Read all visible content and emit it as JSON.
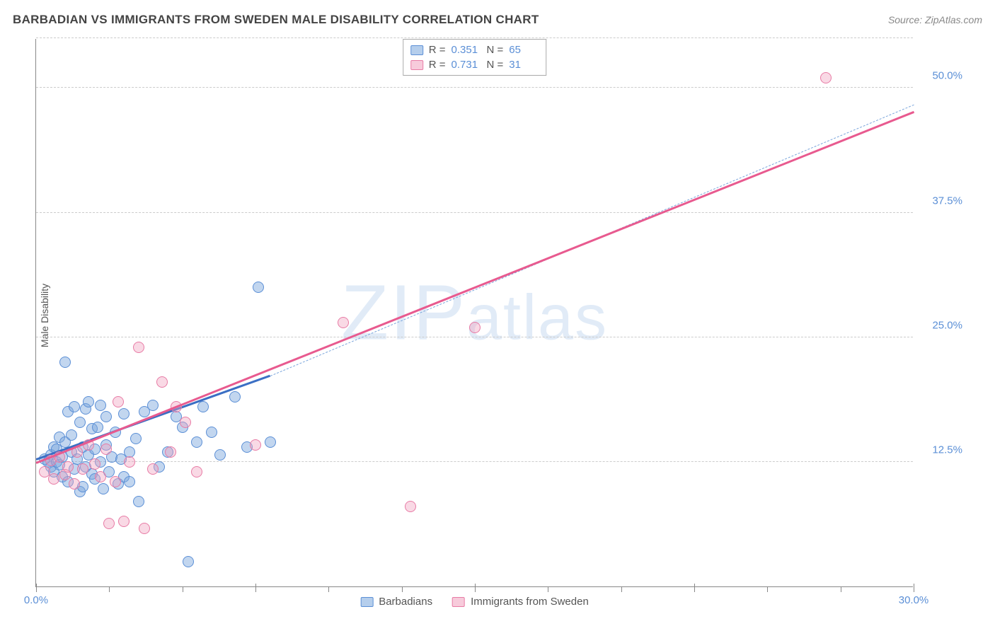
{
  "title": "BARBADIAN VS IMMIGRANTS FROM SWEDEN MALE DISABILITY CORRELATION CHART",
  "source": "Source: ZipAtlas.com",
  "ylabel": "Male Disability",
  "watermark": "ZIPatlas",
  "chart": {
    "type": "scatter",
    "xlim": [
      0,
      30
    ],
    "ylim": [
      0,
      55
    ],
    "x_ticks_major": [
      0,
      7.5,
      15,
      22.5,
      30
    ],
    "x_ticks_minor": [
      2.5,
      5,
      10,
      12.5,
      17.5,
      20,
      25,
      27.5
    ],
    "x_labels": [
      {
        "v": 0,
        "t": "0.0%"
      },
      {
        "v": 30,
        "t": "30.0%"
      }
    ],
    "y_gridlines": [
      12.5,
      25,
      37.5,
      50,
      55
    ],
    "y_labels": [
      {
        "v": 12.5,
        "t": "12.5%"
      },
      {
        "v": 25,
        "t": "25.0%"
      },
      {
        "v": 37.5,
        "t": "37.5%"
      },
      {
        "v": 50,
        "t": "50.0%"
      }
    ],
    "marker_radius": 8,
    "colors": {
      "blue_fill": "rgba(120,165,220,0.45)",
      "blue_stroke": "#5b8fd6",
      "blue_line": "#3b6fc4",
      "pink_fill": "rgba(240,160,190,0.40)",
      "pink_stroke": "#e87ba5",
      "pink_line": "#e85a8f",
      "grid": "#cccccc",
      "axis": "#888888",
      "text": "#555555",
      "tick_label": "#5b8fd6",
      "background": "#ffffff"
    },
    "series": [
      {
        "name": "Barbadians",
        "cls": "b",
        "R": "0.351",
        "N": "65",
        "trend": {
          "x1": 0,
          "y1": 12.7,
          "x2": 8,
          "y2": 21.1
        },
        "trend_dash": {
          "x1": 8,
          "y1": 21.1,
          "x2": 30,
          "y2": 48.3
        },
        "points": [
          [
            0.3,
            12.8
          ],
          [
            0.4,
            12.5
          ],
          [
            0.5,
            13.2
          ],
          [
            0.5,
            12.0
          ],
          [
            0.6,
            14.0
          ],
          [
            0.6,
            11.5
          ],
          [
            0.7,
            12.5
          ],
          [
            0.7,
            13.8
          ],
          [
            0.8,
            12.2
          ],
          [
            0.8,
            15.0
          ],
          [
            0.9,
            11.0
          ],
          [
            0.9,
            13.0
          ],
          [
            1.0,
            14.5
          ],
          [
            1.0,
            22.5
          ],
          [
            1.1,
            17.5
          ],
          [
            1.1,
            10.5
          ],
          [
            1.2,
            13.5
          ],
          [
            1.2,
            15.2
          ],
          [
            1.3,
            18.0
          ],
          [
            1.3,
            11.8
          ],
          [
            1.4,
            12.8
          ],
          [
            1.5,
            16.5
          ],
          [
            1.5,
            9.5
          ],
          [
            1.6,
            14.0
          ],
          [
            1.6,
            10.0
          ],
          [
            1.7,
            12.0
          ],
          [
            1.7,
            17.8
          ],
          [
            1.8,
            13.2
          ],
          [
            1.8,
            18.5
          ],
          [
            1.9,
            11.3
          ],
          [
            1.9,
            15.8
          ],
          [
            2.0,
            10.8
          ],
          [
            2.0,
            13.8
          ],
          [
            2.1,
            16.0
          ],
          [
            2.2,
            12.5
          ],
          [
            2.2,
            18.2
          ],
          [
            2.3,
            9.8
          ],
          [
            2.4,
            14.2
          ],
          [
            2.4,
            17.0
          ],
          [
            2.5,
            11.5
          ],
          [
            2.6,
            13.0
          ],
          [
            2.7,
            15.5
          ],
          [
            2.8,
            10.3
          ],
          [
            2.9,
            12.8
          ],
          [
            3.0,
            17.3
          ],
          [
            3.0,
            11.0
          ],
          [
            3.2,
            13.5
          ],
          [
            3.2,
            10.5
          ],
          [
            3.4,
            14.8
          ],
          [
            3.5,
            8.5
          ],
          [
            3.7,
            17.5
          ],
          [
            4.0,
            18.2
          ],
          [
            4.2,
            12.0
          ],
          [
            4.5,
            13.5
          ],
          [
            4.8,
            17.0
          ],
          [
            5.0,
            16.0
          ],
          [
            5.2,
            2.5
          ],
          [
            5.5,
            14.5
          ],
          [
            5.7,
            18.0
          ],
          [
            6.0,
            15.5
          ],
          [
            6.3,
            13.2
          ],
          [
            6.8,
            19.0
          ],
          [
            7.2,
            14.0
          ],
          [
            7.6,
            30.0
          ],
          [
            8.0,
            14.5
          ]
        ]
      },
      {
        "name": "Immigrants from Sweden",
        "cls": "p",
        "R": "0.731",
        "N": "31",
        "trend": {
          "x1": 0,
          "y1": 12.3,
          "x2": 30,
          "y2": 47.5
        },
        "points": [
          [
            0.3,
            11.5
          ],
          [
            0.5,
            12.6
          ],
          [
            0.6,
            10.8
          ],
          [
            0.8,
            13.0
          ],
          [
            1.0,
            11.2
          ],
          [
            1.1,
            12.0
          ],
          [
            1.3,
            10.3
          ],
          [
            1.4,
            13.5
          ],
          [
            1.6,
            11.8
          ],
          [
            1.8,
            14.2
          ],
          [
            2.0,
            12.3
          ],
          [
            2.2,
            11.0
          ],
          [
            2.4,
            13.8
          ],
          [
            2.5,
            6.3
          ],
          [
            2.7,
            10.5
          ],
          [
            2.8,
            18.5
          ],
          [
            3.0,
            6.5
          ],
          [
            3.2,
            12.5
          ],
          [
            3.5,
            24.0
          ],
          [
            3.7,
            5.8
          ],
          [
            4.0,
            11.8
          ],
          [
            4.3,
            20.5
          ],
          [
            4.6,
            13.5
          ],
          [
            4.8,
            18.0
          ],
          [
            5.1,
            16.5
          ],
          [
            5.5,
            11.5
          ],
          [
            7.5,
            14.2
          ],
          [
            10.5,
            26.5
          ],
          [
            12.8,
            8.0
          ],
          [
            15.0,
            26.0
          ],
          [
            27.0,
            51.0
          ]
        ]
      }
    ]
  },
  "legend": {
    "items": [
      {
        "swatch": "b",
        "label": "Barbadians"
      },
      {
        "swatch": "p",
        "label": "Immigrants from Sweden"
      }
    ]
  }
}
